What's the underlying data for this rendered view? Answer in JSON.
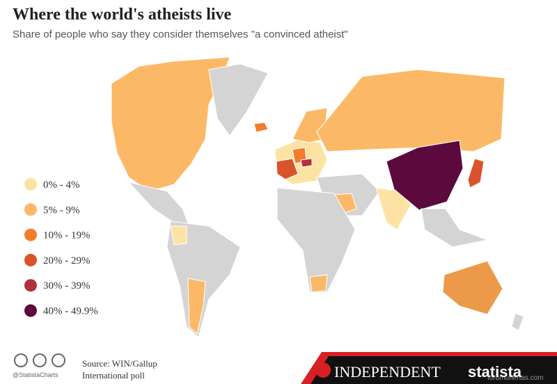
{
  "header": {
    "title": "Where the world's atheists live",
    "subtitle": "Share of people who say they consider themselves \"a convinced atheist\""
  },
  "legend": {
    "items": [
      {
        "label": "0% - 4%",
        "color": "#fde3a3"
      },
      {
        "label": "5% - 9%",
        "color": "#fbb967"
      },
      {
        "label": "10% - 19%",
        "color": "#f47b2a"
      },
      {
        "label": "20% - 29%",
        "color": "#d9532b"
      },
      {
        "label": "30% - 39%",
        "color": "#b0313c"
      },
      {
        "label": "40% - 49.9%",
        "color": "#5c0a3e"
      }
    ]
  },
  "footer": {
    "handle": "@StatistaCharts",
    "source": [
      "Source: WIN/Gallup",
      "International poll"
    ],
    "brand": "INDEPENDENT",
    "logo": "statista",
    "watermark": "forumuhertas.com"
  }
}
